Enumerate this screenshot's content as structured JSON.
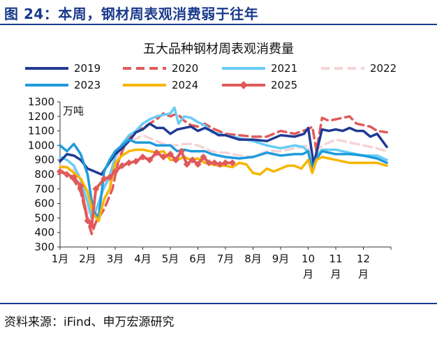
{
  "figure_title": "图 24：本周，钢材周表观消费弱于往年",
  "source": "资料来源：iFind、申万宏源研究",
  "chart_data": {
    "type": "line",
    "title": "五大品种钢材周表观消费量",
    "unit": "万吨",
    "ylim": [
      300,
      1300
    ],
    "yticks": [
      300,
      400,
      500,
      600,
      700,
      800,
      900,
      1000,
      1100,
      1200,
      1300
    ],
    "x_domain": [
      0,
      12
    ],
    "x_ticks": [
      {
        "pos": 0,
        "lines": [
          "1月"
        ]
      },
      {
        "pos": 1,
        "lines": [
          "2月"
        ]
      },
      {
        "pos": 2,
        "lines": [
          "3月"
        ]
      },
      {
        "pos": 3,
        "lines": [
          "4月"
        ]
      },
      {
        "pos": 4,
        "lines": [
          "5月"
        ]
      },
      {
        "pos": 5,
        "lines": [
          "6月"
        ]
      },
      {
        "pos": 6,
        "lines": [
          "7月"
        ]
      },
      {
        "pos": 7,
        "lines": [
          "8月"
        ]
      },
      {
        "pos": 8,
        "lines": [
          "9月"
        ]
      },
      {
        "pos": 9,
        "lines": [
          "10",
          "月"
        ]
      },
      {
        "pos": 10,
        "lines": [
          "11",
          "月"
        ]
      },
      {
        "pos": 11,
        "lines": [
          "12",
          "月"
        ]
      }
    ],
    "legend": [
      {
        "name": "2019",
        "color": "#1f3a93",
        "dash": "",
        "marker": false
      },
      {
        "name": "2020",
        "color": "#e05a5a",
        "dash": "12,7",
        "marker": false
      },
      {
        "name": "2021",
        "color": "#66ccf5",
        "dash": "",
        "marker": false
      },
      {
        "name": "2022",
        "color": "#f6d3d6",
        "dash": "12,7",
        "marker": false
      },
      {
        "name": "2023",
        "color": "#1e9bdc",
        "dash": "",
        "marker": false
      },
      {
        "name": "2024",
        "color": "#f7b500",
        "dash": "",
        "marker": false
      },
      {
        "name": "2025",
        "color": "#e05a5a",
        "dash": "",
        "marker": true
      }
    ],
    "series": [
      {
        "name": "2022",
        "color": "#f6d3d6",
        "width": 3.5,
        "dash": "12,7",
        "marker": false,
        "x": [
          0,
          0.25,
          0.5,
          0.75,
          1.0,
          1.15,
          1.3,
          1.55,
          1.8,
          2.0,
          2.2,
          2.5,
          2.8,
          3.0,
          3.25,
          3.5,
          3.75,
          4.0,
          4.25,
          4.5,
          4.75,
          5.0,
          5.25,
          5.5,
          5.75,
          6.0,
          6.5,
          7.0,
          7.5,
          8.0,
          8.5,
          8.8,
          9.0,
          9.1,
          9.3,
          9.5,
          10.0,
          10.5,
          11.0,
          11.5,
          11.85
        ],
        "y": [
          860,
          850,
          830,
          790,
          560,
          400,
          480,
          700,
          760,
          880,
          980,
          1030,
          1050,
          1070,
          1050,
          1030,
          1010,
          1000,
          1000,
          1010,
          1010,
          1000,
          980,
          960,
          950,
          950,
          930,
          920,
          960,
          960,
          980,
          990,
          1000,
          830,
          960,
          1000,
          1040,
          1020,
          1000,
          980,
          960
        ]
      },
      {
        "name": "2020",
        "color": "#e05a5a",
        "width": 3.5,
        "dash": "12,7",
        "marker": false,
        "x": [
          0,
          0.25,
          0.5,
          0.75,
          1.0,
          1.15,
          1.3,
          1.6,
          1.9,
          2.1,
          2.3,
          2.5,
          2.75,
          3.0,
          3.25,
          3.5,
          3.75,
          4.0,
          4.25,
          4.5,
          4.75,
          5.0,
          5.25,
          5.5,
          6.0,
          6.5,
          7.0,
          7.5,
          8.0,
          8.5,
          8.8,
          9.0,
          9.15,
          9.3,
          9.5,
          9.75,
          10.0,
          10.25,
          10.5,
          10.75,
          11.0,
          11.25,
          11.5,
          11.85
        ],
        "y": [
          830,
          800,
          760,
          680,
          480,
          390,
          470,
          560,
          700,
          880,
          980,
          1050,
          1090,
          1120,
          1150,
          1180,
          1220,
          1200,
          1220,
          1170,
          1140,
          1130,
          1150,
          1120,
          1080,
          1070,
          1060,
          1060,
          1100,
          1080,
          1100,
          1110,
          1130,
          960,
          1190,
          1170,
          1180,
          1190,
          1200,
          1150,
          1140,
          1130,
          1100,
          1090
        ]
      },
      {
        "name": "2021",
        "color": "#66ccf5",
        "width": 3.5,
        "dash": "",
        "marker": false,
        "x": [
          0,
          0.25,
          0.5,
          0.75,
          1.0,
          1.15,
          1.3,
          1.55,
          1.8,
          2.0,
          2.25,
          2.5,
          2.75,
          3.0,
          3.25,
          3.5,
          3.75,
          4.0,
          4.15,
          4.3,
          4.5,
          4.75,
          5.0,
          5.25,
          5.5,
          6.0,
          6.5,
          7.0,
          7.5,
          8.0,
          8.5,
          8.8,
          9.0,
          9.15,
          9.3,
          9.5,
          10.0,
          10.5,
          11.0,
          11.5,
          11.85
        ],
        "y": [
          920,
          900,
          860,
          760,
          610,
          500,
          550,
          690,
          790,
          920,
          1010,
          1070,
          1100,
          1150,
          1180,
          1200,
          1210,
          1220,
          1260,
          1150,
          1200,
          1190,
          1160,
          1140,
          1090,
          1070,
          1050,
          1030,
          1000,
          980,
          1000,
          990,
          960,
          820,
          930,
          970,
          970,
          950,
          930,
          930,
          900
        ]
      },
      {
        "name": "2019",
        "color": "#1f3a93",
        "width": 3.5,
        "dash": "",
        "marker": false,
        "x": [
          0,
          0.25,
          0.5,
          0.75,
          1.0,
          1.25,
          1.5,
          1.75,
          2.0,
          2.25,
          2.5,
          2.75,
          3.0,
          3.25,
          3.5,
          3.75,
          4.0,
          4.25,
          4.5,
          4.75,
          5.0,
          5.25,
          5.5,
          5.75,
          6.0,
          6.5,
          7.0,
          7.5,
          8.0,
          8.5,
          8.85,
          9.0,
          9.2,
          9.5,
          9.75,
          10.0,
          10.25,
          10.5,
          10.75,
          11.0,
          11.25,
          11.5,
          11.85
        ],
        "y": [
          890,
          940,
          930,
          900,
          840,
          820,
          800,
          870,
          940,
          980,
          1030,
          1090,
          1110,
          1150,
          1120,
          1120,
          1080,
          1110,
          1120,
          1130,
          1100,
          1120,
          1100,
          1070,
          1070,
          1040,
          1040,
          1030,
          1070,
          1060,
          1080,
          1120,
          870,
          1110,
          1100,
          1110,
          1100,
          1120,
          1100,
          1100,
          1060,
          1080,
          990
        ]
      },
      {
        "name": "2023",
        "color": "#1e9bdc",
        "width": 3.5,
        "dash": "",
        "marker": false,
        "x": [
          0,
          0.25,
          0.5,
          0.75,
          1.0,
          1.2,
          1.4,
          1.6,
          1.8,
          2.0,
          2.25,
          2.5,
          2.75,
          3.0,
          3.25,
          3.5,
          3.75,
          4.0,
          4.25,
          4.5,
          4.75,
          5.0,
          5.25,
          5.5,
          5.75,
          6.0,
          6.5,
          7.0,
          7.5,
          8.0,
          8.5,
          8.8,
          9.0,
          9.15,
          9.3,
          9.5,
          10.0,
          10.5,
          11.0,
          11.5,
          11.85
        ],
        "y": [
          1000,
          960,
          1010,
          940,
          800,
          550,
          500,
          820,
          900,
          960,
          1000,
          1040,
          1020,
          1020,
          1020,
          1000,
          1000,
          1000,
          960,
          970,
          960,
          960,
          960,
          940,
          930,
          920,
          910,
          920,
          950,
          930,
          940,
          940,
          960,
          840,
          910,
          960,
          940,
          940,
          930,
          910,
          880
        ]
      },
      {
        "name": "2024",
        "color": "#f7b500",
        "width": 3.5,
        "dash": "",
        "marker": false,
        "x": [
          0,
          0.25,
          0.5,
          0.75,
          1.0,
          1.2,
          1.4,
          1.6,
          1.8,
          2.0,
          2.25,
          2.5,
          2.75,
          3.0,
          3.25,
          3.5,
          3.75,
          4.0,
          4.25,
          4.5,
          4.75,
          5.0,
          5.25,
          5.5,
          5.75,
          6.0,
          6.25,
          6.5,
          6.75,
          7.0,
          7.25,
          7.5,
          7.75,
          8.0,
          8.25,
          8.5,
          8.75,
          9.0,
          9.15,
          9.3,
          9.5,
          10.0,
          10.5,
          11.0,
          11.5,
          11.85
        ],
        "y": [
          850,
          850,
          810,
          770,
          680,
          530,
          480,
          630,
          700,
          880,
          930,
          960,
          970,
          970,
          960,
          950,
          960,
          900,
          900,
          920,
          900,
          910,
          880,
          870,
          860,
          860,
          850,
          880,
          870,
          810,
          800,
          840,
          820,
          840,
          860,
          860,
          840,
          900,
          810,
          900,
          920,
          900,
          880,
          880,
          880,
          860
        ]
      },
      {
        "name": "2025",
        "color": "#e05a5a",
        "width": 4,
        "dash": "",
        "marker": true,
        "x": [
          0,
          0.25,
          0.5,
          0.75,
          1.0,
          1.15,
          1.3,
          1.6,
          1.8,
          2.0,
          2.25,
          2.5,
          2.75,
          3.0,
          3.25,
          3.5,
          3.75,
          4.0,
          4.2,
          4.4,
          4.6,
          4.8,
          5.0,
          5.2,
          5.4,
          5.6,
          5.8,
          6.0,
          6.25
        ],
        "y": [
          820,
          800,
          780,
          720,
          480,
          450,
          700,
          770,
          780,
          820,
          860,
          880,
          890,
          920,
          900,
          950,
          920,
          940,
          900,
          960,
          870,
          900,
          870,
          920,
          880,
          880,
          870,
          880,
          880
        ]
      }
    ]
  }
}
